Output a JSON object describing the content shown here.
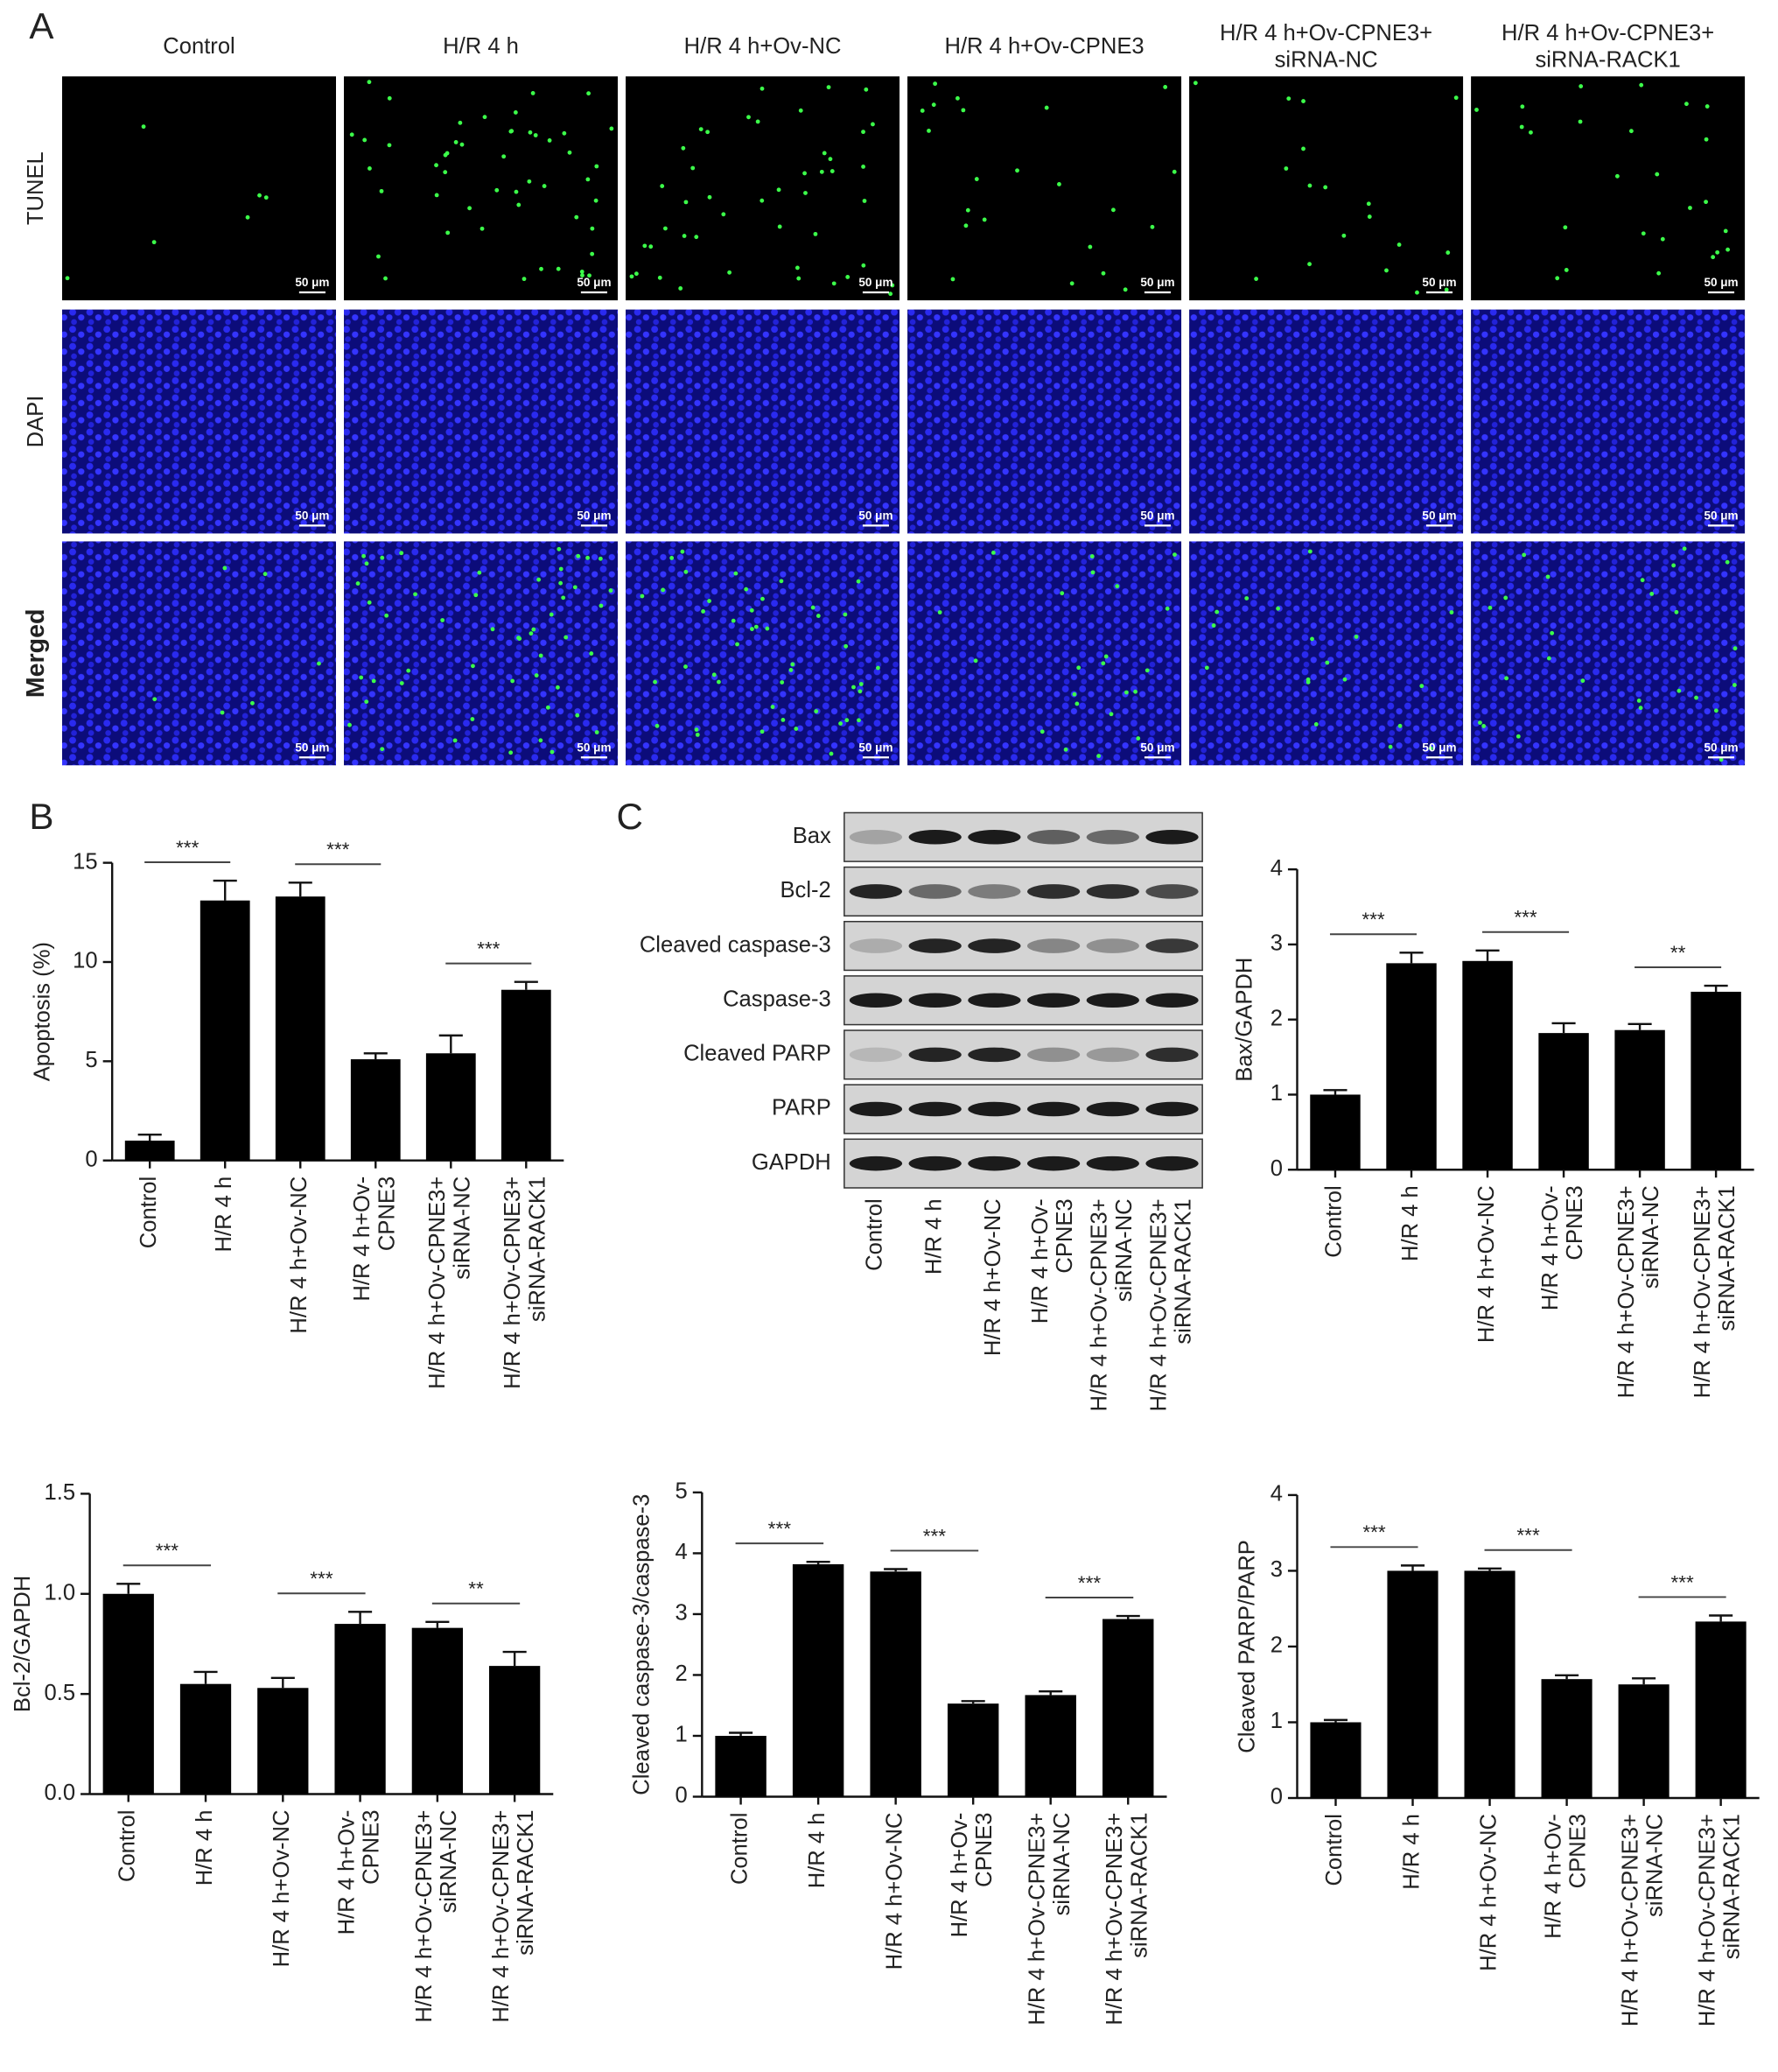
{
  "figure": {
    "panels": [
      "A",
      "B",
      "C"
    ],
    "columns": [
      "Control",
      "H/R 4 h",
      "H/R 4 h+Ov-NC",
      "H/R 4 h+Ov-CPNE3",
      "H/R 4 h+Ov-CPNE3+\nsiRNA-NC",
      "H/R 4 h+Ov-CPNE3+\nsiRNA-RACK1"
    ],
    "rows": [
      "TUNEL",
      "DAPI",
      "Merged"
    ],
    "scale_bar": "50 μm",
    "blot": {
      "proteins": [
        "Bax",
        "Bcl-2",
        "Cleaved caspase-3",
        "Caspase-3",
        "Cleaved PARP",
        "PARP",
        "GAPDH"
      ],
      "lanes": [
        "Control",
        "H/R 4 h",
        "H/R 4 h+Ov-NC",
        "H/R 4 h+Ov-\nCPNE3",
        "H/R 4 h+Ov-CPNE3+\nsiRNA-NC",
        "H/R 4 h+Ov-CPNE3+\nsiRNA-RACK1"
      ]
    }
  },
  "chart_data": [
    {
      "type": "bar",
      "ylabel": "Apoptosis (%)",
      "categories": [
        "Control",
        "H/R 4 h",
        "H/R 4 h+Ov-NC",
        "H/R 4 h+Ov-\nCPNE3",
        "H/R 4 h+Ov-CPNE3+\nsiRNA-NC",
        "H/R 4 h+Ov-CPNE3+\nsiRNA-RACK1"
      ],
      "values": [
        1.0,
        13.1,
        13.3,
        5.1,
        5.4,
        8.6
      ],
      "errors": [
        0.3,
        1.0,
        0.7,
        0.3,
        0.9,
        0.4
      ],
      "color": "#000000",
      "ylim": [
        0,
        15
      ],
      "yticks": [
        0,
        5,
        10,
        15
      ],
      "annotations": [
        "***",
        "***",
        "***"
      ]
    },
    {
      "type": "bar",
      "ylabel": "Bax/GAPDH",
      "categories": [
        "Control",
        "H/R 4 h",
        "H/R 4 h+Ov-NC",
        "H/R 4 h+Ov-\nCPNE3",
        "H/R 4 h+Ov-CPNE3+\nsiRNA-NC",
        "H/R 4 h+Ov-CPNE3+\nsiRNA-RACK1"
      ],
      "values": [
        1.0,
        2.75,
        2.78,
        1.82,
        1.86,
        2.37
      ],
      "errors": [
        0.06,
        0.14,
        0.14,
        0.13,
        0.08,
        0.08
      ],
      "color": "#000000",
      "ylim": [
        0,
        4
      ],
      "yticks": [
        0,
        1,
        2,
        3,
        4
      ],
      "annotations": [
        "***",
        "***",
        "**"
      ]
    },
    {
      "type": "bar",
      "ylabel": "Bcl-2/GAPDH",
      "categories": [
        "Control",
        "H/R 4 h",
        "H/R 4 h+Ov-NC",
        "H/R 4 h+Ov-\nCPNE3",
        "H/R 4 h+Ov-CPNE3+\nsiRNA-NC",
        "H/R 4 h+Ov-CPNE3+\nsiRNA-RACK1"
      ],
      "values": [
        1.0,
        0.55,
        0.53,
        0.85,
        0.83,
        0.64
      ],
      "errors": [
        0.05,
        0.06,
        0.05,
        0.06,
        0.03,
        0.07
      ],
      "color": "#000000",
      "ylim": [
        0,
        1.5
      ],
      "yticks": [
        {
          "value": 0,
          "label": "0.0"
        },
        0.5,
        {
          "value": 1,
          "label": "1.0"
        },
        1.5
      ],
      "annotations": [
        "***",
        "***",
        "**"
      ]
    },
    {
      "type": "bar",
      "ylabel": "Cleaved caspase-3/caspase-3",
      "categories": [
        "Control",
        "H/R 4 h",
        "H/R 4 h+Ov-NC",
        "H/R 4 h+Ov-\nCPNE3",
        "H/R 4 h+Ov-CPNE3+\nsiRNA-NC",
        "H/R 4 h+Ov-CPNE3+\nsiRNA-RACK1"
      ],
      "values": [
        1.0,
        3.82,
        3.7,
        1.53,
        1.67,
        2.92
      ],
      "errors": [
        0.05,
        0.04,
        0.04,
        0.04,
        0.06,
        0.05
      ],
      "color": "#000000",
      "ylim": [
        0,
        5
      ],
      "yticks": [
        0,
        1,
        2,
        3,
        4,
        5
      ],
      "annotations": [
        "***",
        "***",
        "***"
      ]
    },
    {
      "type": "bar",
      "ylabel": "Cleaved PARP/PARP",
      "categories": [
        "Control",
        "H/R 4 h",
        "H/R 4 h+Ov-NC",
        "H/R 4 h+Ov-\nCPNE3",
        "H/R 4 h+Ov-CPNE3+\nsiRNA-NC",
        "H/R 4 h+Ov-CPNE3+\nsiRNA-RACK1"
      ],
      "values": [
        1.0,
        3.0,
        3.0,
        1.57,
        1.5,
        2.33
      ],
      "errors": [
        0.03,
        0.07,
        0.03,
        0.05,
        0.08,
        0.08
      ],
      "color": "#000000",
      "ylim": [
        0,
        4
      ],
      "yticks": [
        0,
        1,
        2,
        3,
        4
      ],
      "annotations": [
        "***",
        "***",
        "***"
      ]
    }
  ]
}
